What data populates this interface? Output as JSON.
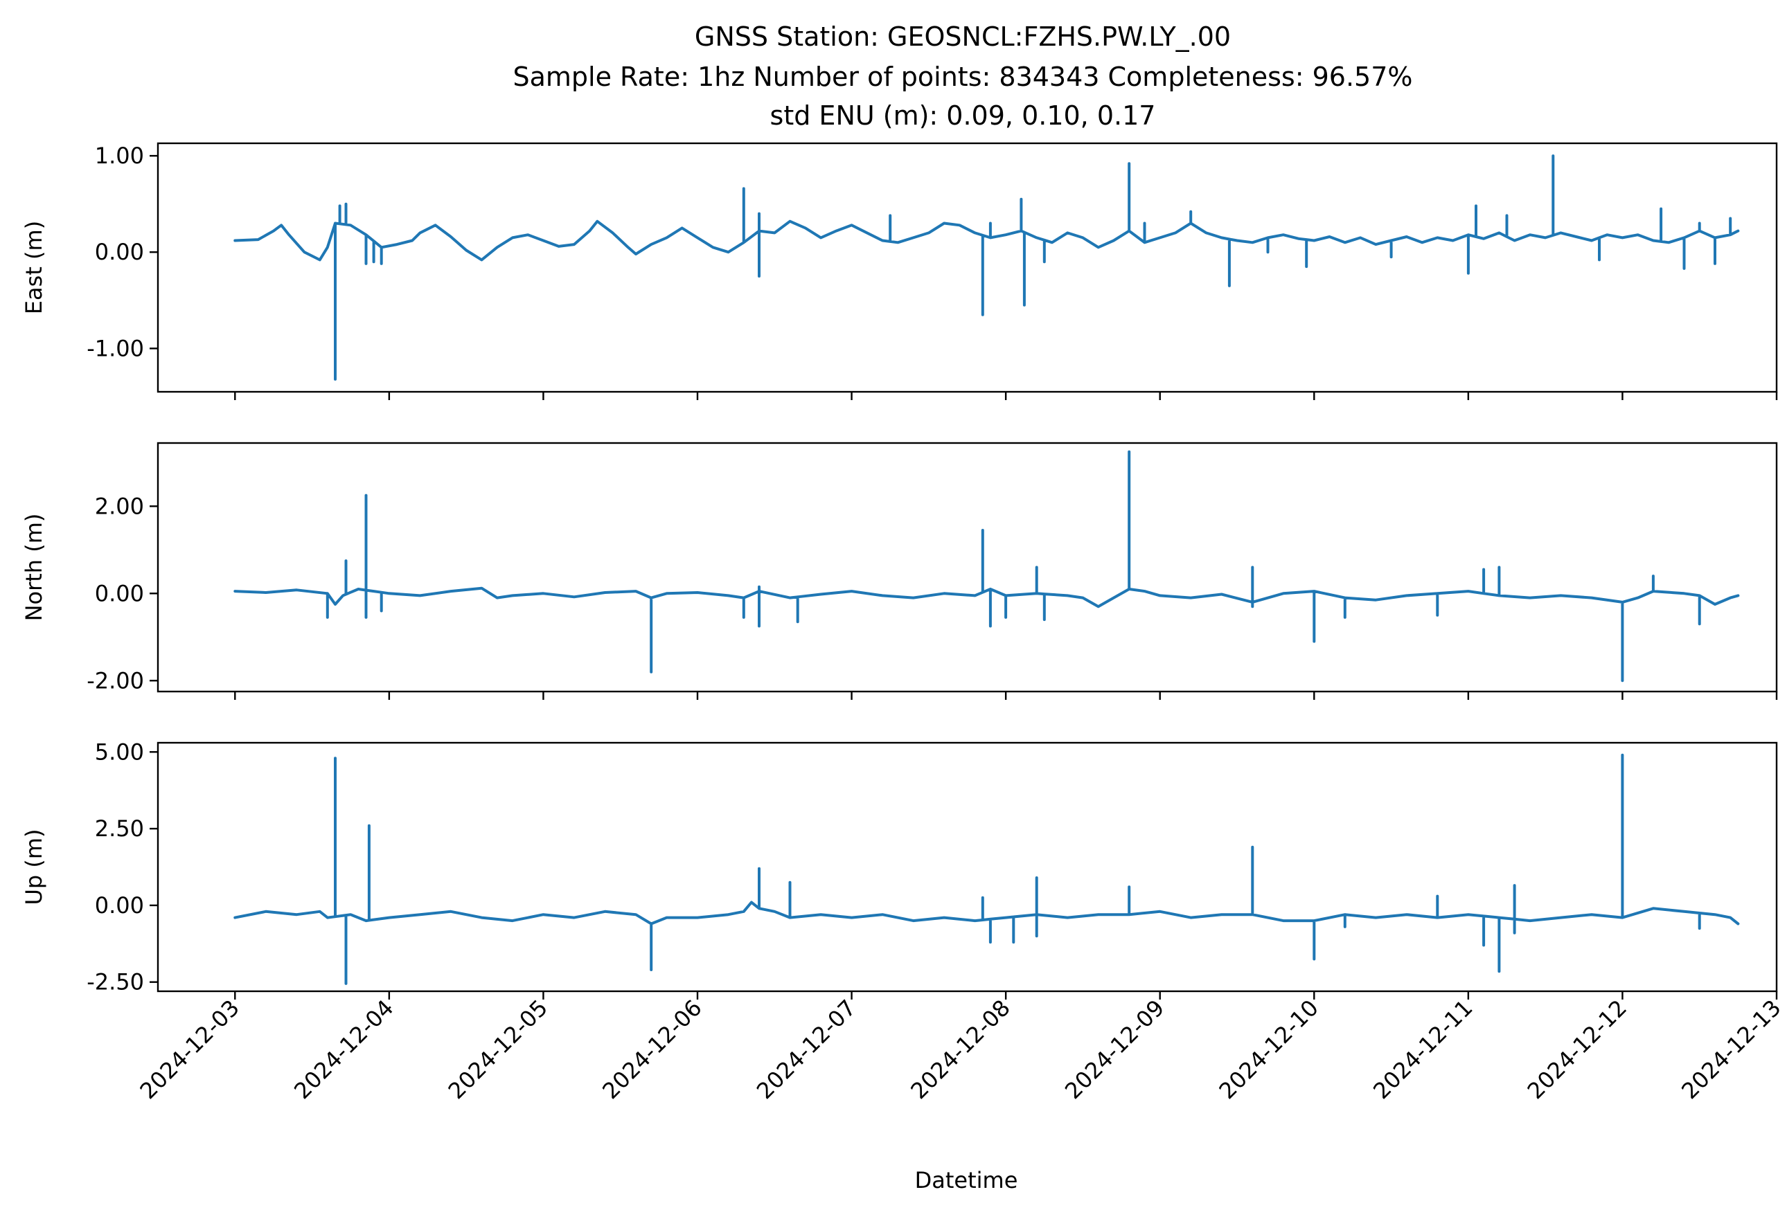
{
  "chart_data": {
    "type": "line",
    "title_lines": [
      "GNSS Station: GEOSNCL:FZHS.PW.LY_.00",
      "Sample Rate: 1hz   Number of points: 834343    Completeness:  96.57%",
      "std ENU (m):  0.09, 0.10, 0.17"
    ],
    "xlabel": "Datetime",
    "x_ticks": [
      "2024-12-03",
      "2024-12-04",
      "2024-12-05",
      "2024-12-06",
      "2024-12-07",
      "2024-12-08",
      "2024-12-09",
      "2024-12-10",
      "2024-12-11",
      "2024-12-12",
      "2024-12-13"
    ],
    "xlim": [
      -0.5,
      10.0
    ],
    "x_unit": "days since 2024-12-03",
    "line_color": "#1f77b4",
    "panels": [
      {
        "name": "east",
        "ylabel": "East (m)",
        "ylim": [
          -1.45,
          1.13
        ],
        "y_ticks": [
          1.0,
          0.0,
          -1.0
        ],
        "y_tick_labels": [
          "1.00",
          "0.00",
          "-1.00"
        ],
        "baseline": [
          [
            0.0,
            0.12
          ],
          [
            0.15,
            0.13
          ],
          [
            0.25,
            0.22
          ],
          [
            0.3,
            0.28
          ],
          [
            0.35,
            0.18
          ],
          [
            0.45,
            0.0
          ],
          [
            0.55,
            -0.08
          ],
          [
            0.6,
            0.05
          ],
          [
            0.65,
            0.3
          ],
          [
            0.75,
            0.28
          ],
          [
            0.85,
            0.18
          ],
          [
            0.95,
            0.05
          ],
          [
            1.05,
            0.08
          ],
          [
            1.15,
            0.12
          ],
          [
            1.2,
            0.2
          ],
          [
            1.3,
            0.28
          ],
          [
            1.4,
            0.16
          ],
          [
            1.5,
            0.02
          ],
          [
            1.6,
            -0.08
          ],
          [
            1.7,
            0.05
          ],
          [
            1.8,
            0.15
          ],
          [
            1.9,
            0.18
          ],
          [
            2.0,
            0.12
          ],
          [
            2.1,
            0.06
          ],
          [
            2.2,
            0.08
          ],
          [
            2.3,
            0.22
          ],
          [
            2.35,
            0.32
          ],
          [
            2.45,
            0.2
          ],
          [
            2.55,
            0.05
          ],
          [
            2.6,
            -0.02
          ],
          [
            2.7,
            0.08
          ],
          [
            2.8,
            0.15
          ],
          [
            2.9,
            0.25
          ],
          [
            3.0,
            0.15
          ],
          [
            3.1,
            0.05
          ],
          [
            3.2,
            0.0
          ],
          [
            3.3,
            0.1
          ],
          [
            3.4,
            0.22
          ],
          [
            3.5,
            0.2
          ],
          [
            3.6,
            0.32
          ],
          [
            3.7,
            0.25
          ],
          [
            3.8,
            0.15
          ],
          [
            3.9,
            0.22
          ],
          [
            4.0,
            0.28
          ],
          [
            4.1,
            0.2
          ],
          [
            4.2,
            0.12
          ],
          [
            4.3,
            0.1
          ],
          [
            4.4,
            0.15
          ],
          [
            4.5,
            0.2
          ],
          [
            4.6,
            0.3
          ],
          [
            4.7,
            0.28
          ],
          [
            4.8,
            0.2
          ],
          [
            4.9,
            0.15
          ],
          [
            5.0,
            0.18
          ],
          [
            5.1,
            0.22
          ],
          [
            5.2,
            0.15
          ],
          [
            5.3,
            0.1
          ],
          [
            5.4,
            0.2
          ],
          [
            5.5,
            0.15
          ],
          [
            5.6,
            0.05
          ],
          [
            5.7,
            0.12
          ],
          [
            5.8,
            0.22
          ],
          [
            5.9,
            0.1
          ],
          [
            6.0,
            0.15
          ],
          [
            6.1,
            0.2
          ],
          [
            6.2,
            0.3
          ],
          [
            6.3,
            0.2
          ],
          [
            6.4,
            0.15
          ],
          [
            6.5,
            0.12
          ],
          [
            6.6,
            0.1
          ],
          [
            6.7,
            0.15
          ],
          [
            6.8,
            0.18
          ],
          [
            6.9,
            0.14
          ],
          [
            7.0,
            0.12
          ],
          [
            7.1,
            0.16
          ],
          [
            7.2,
            0.1
          ],
          [
            7.3,
            0.15
          ],
          [
            7.4,
            0.08
          ],
          [
            7.5,
            0.12
          ],
          [
            7.6,
            0.16
          ],
          [
            7.7,
            0.1
          ],
          [
            7.8,
            0.15
          ],
          [
            7.9,
            0.12
          ],
          [
            8.0,
            0.18
          ],
          [
            8.1,
            0.14
          ],
          [
            8.2,
            0.2
          ],
          [
            8.3,
            0.12
          ],
          [
            8.4,
            0.18
          ],
          [
            8.5,
            0.15
          ],
          [
            8.6,
            0.2
          ],
          [
            8.7,
            0.16
          ],
          [
            8.8,
            0.12
          ],
          [
            8.9,
            0.18
          ],
          [
            9.0,
            0.15
          ],
          [
            9.1,
            0.18
          ],
          [
            9.2,
            0.12
          ],
          [
            9.3,
            0.1
          ],
          [
            9.4,
            0.15
          ],
          [
            9.5,
            0.22
          ],
          [
            9.6,
            0.15
          ],
          [
            9.7,
            0.18
          ],
          [
            9.75,
            0.22
          ]
        ],
        "spikes": [
          [
            0.65,
            -1.32
          ],
          [
            0.68,
            0.48
          ],
          [
            0.72,
            0.5
          ],
          [
            0.85,
            -0.12
          ],
          [
            0.9,
            -0.1
          ],
          [
            0.95,
            -0.12
          ],
          [
            3.3,
            0.66
          ],
          [
            3.4,
            -0.25
          ],
          [
            3.4,
            0.4
          ],
          [
            4.25,
            0.38
          ],
          [
            4.85,
            -0.65
          ],
          [
            4.9,
            0.3
          ],
          [
            5.1,
            0.55
          ],
          [
            5.12,
            -0.55
          ],
          [
            5.25,
            -0.1
          ],
          [
            5.8,
            0.92
          ],
          [
            5.9,
            0.3
          ],
          [
            6.2,
            0.42
          ],
          [
            6.45,
            -0.35
          ],
          [
            6.7,
            0.0
          ],
          [
            6.95,
            -0.15
          ],
          [
            7.5,
            -0.05
          ],
          [
            8.0,
            -0.22
          ],
          [
            8.05,
            0.48
          ],
          [
            8.25,
            0.38
          ],
          [
            8.55,
            1.0
          ],
          [
            8.85,
            -0.08
          ],
          [
            9.25,
            0.45
          ],
          [
            9.4,
            -0.17
          ],
          [
            9.5,
            0.3
          ],
          [
            9.6,
            -0.12
          ],
          [
            9.7,
            0.35
          ]
        ]
      },
      {
        "name": "north",
        "ylabel": "North (m)",
        "ylim": [
          -2.25,
          3.45
        ],
        "y_ticks": [
          2.0,
          0.0,
          -2.0
        ],
        "y_tick_labels": [
          "2.00",
          "0.00",
          "-2.00"
        ],
        "baseline": [
          [
            0.0,
            0.05
          ],
          [
            0.2,
            0.02
          ],
          [
            0.4,
            0.08
          ],
          [
            0.6,
            0.0
          ],
          [
            0.65,
            -0.25
          ],
          [
            0.7,
            -0.05
          ],
          [
            0.8,
            0.1
          ],
          [
            0.9,
            0.05
          ],
          [
            1.0,
            0.0
          ],
          [
            1.2,
            -0.05
          ],
          [
            1.4,
            0.05
          ],
          [
            1.6,
            0.12
          ],
          [
            1.7,
            -0.1
          ],
          [
            1.8,
            -0.05
          ],
          [
            2.0,
            0.0
          ],
          [
            2.2,
            -0.08
          ],
          [
            2.4,
            0.02
          ],
          [
            2.6,
            0.05
          ],
          [
            2.7,
            -0.1
          ],
          [
            2.8,
            0.0
          ],
          [
            3.0,
            0.02
          ],
          [
            3.2,
            -0.05
          ],
          [
            3.3,
            -0.1
          ],
          [
            3.4,
            0.05
          ],
          [
            3.6,
            -0.1
          ],
          [
            3.8,
            -0.02
          ],
          [
            4.0,
            0.05
          ],
          [
            4.2,
            -0.05
          ],
          [
            4.4,
            -0.1
          ],
          [
            4.6,
            0.0
          ],
          [
            4.8,
            -0.05
          ],
          [
            4.9,
            0.1
          ],
          [
            5.0,
            -0.05
          ],
          [
            5.2,
            0.0
          ],
          [
            5.4,
            -0.05
          ],
          [
            5.5,
            -0.1
          ],
          [
            5.6,
            -0.3
          ],
          [
            5.7,
            -0.1
          ],
          [
            5.8,
            0.1
          ],
          [
            5.9,
            0.05
          ],
          [
            6.0,
            -0.05
          ],
          [
            6.2,
            -0.1
          ],
          [
            6.4,
            -0.02
          ],
          [
            6.6,
            -0.2
          ],
          [
            6.8,
            0.0
          ],
          [
            7.0,
            0.05
          ],
          [
            7.2,
            -0.1
          ],
          [
            7.4,
            -0.15
          ],
          [
            7.6,
            -0.05
          ],
          [
            7.8,
            0.0
          ],
          [
            8.0,
            0.05
          ],
          [
            8.2,
            -0.05
          ],
          [
            8.4,
            -0.1
          ],
          [
            8.6,
            -0.05
          ],
          [
            8.8,
            -0.1
          ],
          [
            9.0,
            -0.2
          ],
          [
            9.1,
            -0.1
          ],
          [
            9.2,
            0.05
          ],
          [
            9.4,
            0.0
          ],
          [
            9.5,
            -0.05
          ],
          [
            9.6,
            -0.25
          ],
          [
            9.7,
            -0.1
          ],
          [
            9.75,
            -0.05
          ]
        ],
        "spikes": [
          [
            0.6,
            -0.55
          ],
          [
            0.72,
            0.75
          ],
          [
            0.85,
            2.25
          ],
          [
            0.85,
            -0.55
          ],
          [
            0.95,
            -0.4
          ],
          [
            2.7,
            -1.8
          ],
          [
            3.3,
            -0.55
          ],
          [
            3.4,
            0.15
          ],
          [
            3.4,
            -0.75
          ],
          [
            3.65,
            -0.65
          ],
          [
            4.85,
            1.45
          ],
          [
            4.9,
            -0.75
          ],
          [
            5.0,
            -0.55
          ],
          [
            5.2,
            0.6
          ],
          [
            5.25,
            -0.6
          ],
          [
            5.8,
            3.25
          ],
          [
            6.6,
            0.6
          ],
          [
            6.6,
            -0.3
          ],
          [
            7.0,
            -1.1
          ],
          [
            7.2,
            -0.55
          ],
          [
            7.8,
            -0.5
          ],
          [
            8.1,
            0.55
          ],
          [
            8.2,
            0.6
          ],
          [
            9.0,
            -2.0
          ],
          [
            9.2,
            0.4
          ],
          [
            9.5,
            -0.7
          ]
        ]
      },
      {
        "name": "up",
        "ylabel": "Up (m)",
        "ylim": [
          -2.8,
          5.3
        ],
        "y_ticks": [
          5.0,
          2.5,
          0.0,
          -2.5
        ],
        "y_tick_labels": [
          "5.00",
          "2.50",
          "0.00",
          "-2.50"
        ],
        "baseline": [
          [
            0.0,
            -0.4
          ],
          [
            0.2,
            -0.2
          ],
          [
            0.4,
            -0.3
          ],
          [
            0.55,
            -0.2
          ],
          [
            0.6,
            -0.4
          ],
          [
            0.75,
            -0.3
          ],
          [
            0.85,
            -0.5
          ],
          [
            1.0,
            -0.4
          ],
          [
            1.2,
            -0.3
          ],
          [
            1.4,
            -0.2
          ],
          [
            1.6,
            -0.4
          ],
          [
            1.8,
            -0.5
          ],
          [
            2.0,
            -0.3
          ],
          [
            2.2,
            -0.4
          ],
          [
            2.4,
            -0.2
          ],
          [
            2.6,
            -0.3
          ],
          [
            2.7,
            -0.6
          ],
          [
            2.8,
            -0.4
          ],
          [
            3.0,
            -0.4
          ],
          [
            3.2,
            -0.3
          ],
          [
            3.3,
            -0.2
          ],
          [
            3.35,
            0.1
          ],
          [
            3.4,
            -0.1
          ],
          [
            3.5,
            -0.2
          ],
          [
            3.6,
            -0.4
          ],
          [
            3.8,
            -0.3
          ],
          [
            4.0,
            -0.4
          ],
          [
            4.2,
            -0.3
          ],
          [
            4.4,
            -0.5
          ],
          [
            4.6,
            -0.4
          ],
          [
            4.8,
            -0.5
          ],
          [
            5.0,
            -0.4
          ],
          [
            5.2,
            -0.3
          ],
          [
            5.4,
            -0.4
          ],
          [
            5.6,
            -0.3
          ],
          [
            5.8,
            -0.3
          ],
          [
            6.0,
            -0.2
          ],
          [
            6.2,
            -0.4
          ],
          [
            6.4,
            -0.3
          ],
          [
            6.6,
            -0.3
          ],
          [
            6.8,
            -0.5
          ],
          [
            7.0,
            -0.5
          ],
          [
            7.2,
            -0.3
          ],
          [
            7.4,
            -0.4
          ],
          [
            7.6,
            -0.3
          ],
          [
            7.8,
            -0.4
          ],
          [
            8.0,
            -0.3
          ],
          [
            8.2,
            -0.4
          ],
          [
            8.4,
            -0.5
          ],
          [
            8.6,
            -0.4
          ],
          [
            8.8,
            -0.3
          ],
          [
            9.0,
            -0.4
          ],
          [
            9.2,
            -0.1
          ],
          [
            9.4,
            -0.2
          ],
          [
            9.6,
            -0.3
          ],
          [
            9.7,
            -0.4
          ],
          [
            9.75,
            -0.6
          ]
        ],
        "spikes": [
          [
            0.65,
            4.8
          ],
          [
            0.72,
            -2.55
          ],
          [
            0.87,
            2.6
          ],
          [
            2.7,
            -2.1
          ],
          [
            3.4,
            1.2
          ],
          [
            3.6,
            0.75
          ],
          [
            4.85,
            0.25
          ],
          [
            4.9,
            -1.2
          ],
          [
            5.05,
            -1.2
          ],
          [
            5.2,
            0.9
          ],
          [
            5.2,
            -1.0
          ],
          [
            5.8,
            0.6
          ],
          [
            6.6,
            1.9
          ],
          [
            7.0,
            -1.75
          ],
          [
            7.2,
            -0.7
          ],
          [
            7.8,
            0.3
          ],
          [
            8.1,
            -1.3
          ],
          [
            8.2,
            -2.15
          ],
          [
            8.3,
            0.65
          ],
          [
            8.3,
            -0.9
          ],
          [
            9.0,
            4.9
          ],
          [
            9.0,
            2.7
          ],
          [
            9.5,
            -0.75
          ]
        ]
      }
    ]
  }
}
